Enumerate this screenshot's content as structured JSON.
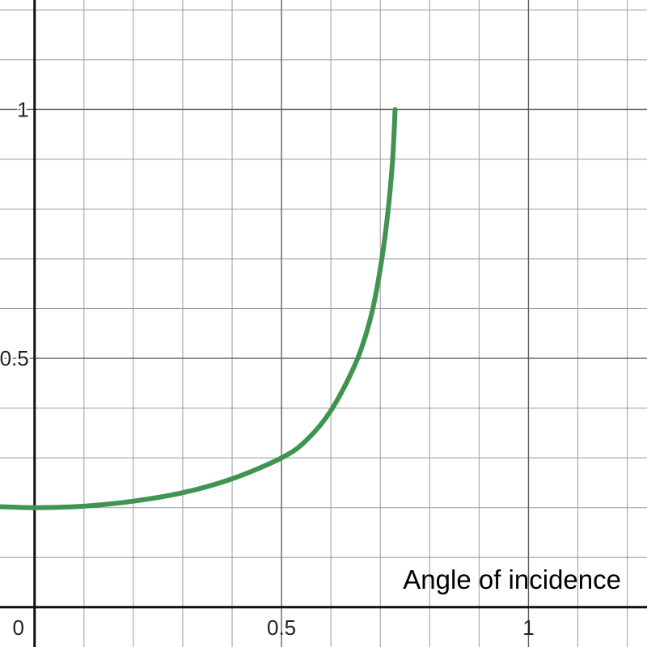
{
  "chart_data": {
    "type": "line",
    "xlabel": "Angle of incidence",
    "ylabel": "",
    "xlim": [
      -0.07,
      1.24
    ],
    "ylim": [
      -0.08,
      1.22
    ],
    "grid": true,
    "x_ticks": [
      {
        "value": 0,
        "label": "0"
      },
      {
        "value": 0.5,
        "label": "0.5"
      },
      {
        "value": 1,
        "label": "1"
      }
    ],
    "y_ticks": [
      {
        "value": 0.5,
        "label": "0.5"
      },
      {
        "value": 1,
        "label": "1"
      }
    ],
    "series": [
      {
        "color": "#3f9451",
        "x": [
          -0.07,
          0.0,
          0.1,
          0.2,
          0.3,
          0.4,
          0.5,
          0.55,
          0.6,
          0.65,
          0.68,
          0.7,
          0.715,
          0.725,
          0.73
        ],
        "y": [
          0.202,
          0.2,
          0.203,
          0.213,
          0.23,
          0.258,
          0.3,
          0.335,
          0.395,
          0.49,
          0.58,
          0.68,
          0.79,
          0.9,
          1.0
        ]
      }
    ]
  }
}
